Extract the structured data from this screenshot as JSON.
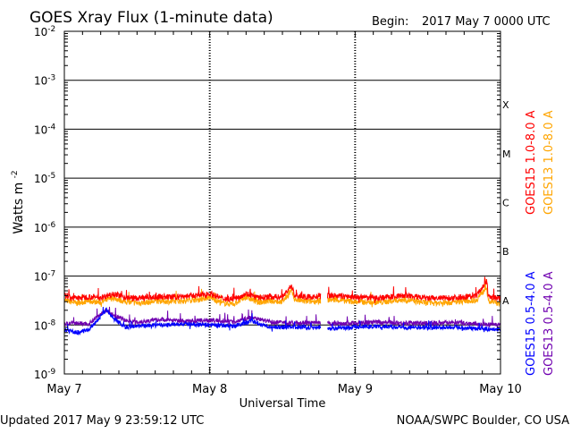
{
  "header": {
    "title": "GOES Xray Flux (1-minute data)",
    "begin_label": "Begin:",
    "begin_value": "2017 May 7 0000 UTC"
  },
  "footer": {
    "updated": "Updated 2017 May  9 23:59:12 UTC",
    "credit": "NOAA/SWPC Boulder, CO USA"
  },
  "colors": {
    "goes15_long": "#ff0000",
    "goes13_long": "#ffa500",
    "goes15_short": "#0000ff",
    "goes13_short": "#7000b0",
    "grid": "#000000",
    "background": "#ffffff"
  },
  "chart_data": {
    "type": "line",
    "title": "GOES Xray Flux (1-minute data)",
    "xlabel": "Universal Time",
    "ylabel": "Watts m-2",
    "y_scale": "log",
    "ylim": [
      1e-09,
      0.01
    ],
    "x_range_hours": [
      0,
      72
    ],
    "x_ticks": [
      {
        "label": "May 7",
        "hour": 0
      },
      {
        "label": "May 8",
        "hour": 24
      },
      {
        "label": "May 9",
        "hour": 48
      },
      {
        "label": "May 10",
        "hour": 72
      }
    ],
    "y_ticks": [
      {
        "base": "10",
        "exp": "-9",
        "value": 1e-09
      },
      {
        "base": "10",
        "exp": "-8",
        "value": 1e-08
      },
      {
        "base": "10",
        "exp": "-7",
        "value": 1e-07
      },
      {
        "base": "10",
        "exp": "-6",
        "value": 1e-06
      },
      {
        "base": "10",
        "exp": "-5",
        "value": 1e-05
      },
      {
        "base": "10",
        "exp": "-4",
        "value": 0.0001
      },
      {
        "base": "10",
        "exp": "-3",
        "value": 0.001
      },
      {
        "base": "10",
        "exp": "-2",
        "value": 0.01
      }
    ],
    "flare_classes": [
      {
        "label": "A",
        "value": 1e-08
      },
      {
        "label": "B",
        "value": 1e-07
      },
      {
        "label": "C",
        "value": 1e-06
      },
      {
        "label": "M",
        "value": 1e-05
      },
      {
        "label": "X",
        "value": 0.0001
      }
    ],
    "grid": true,
    "data_gap_hours": [
      42.3,
      43.4
    ],
    "series": [
      {
        "name": "GOES15 1.0-8.0 A",
        "color": "#ff0000",
        "points": [
          [
            0,
            4e-08
          ],
          [
            2,
            3.5e-08
          ],
          [
            4,
            3.8e-08
          ],
          [
            6,
            3.6e-08
          ],
          [
            8,
            4.4e-08
          ],
          [
            10,
            3.7e-08
          ],
          [
            12,
            3.5e-08
          ],
          [
            16,
            3.8e-08
          ],
          [
            18,
            3.7e-08
          ],
          [
            20,
            3.9e-08
          ],
          [
            22,
            4e-08
          ],
          [
            24,
            4.4e-08
          ],
          [
            26,
            3.5e-08
          ],
          [
            28,
            3.4e-08
          ],
          [
            30,
            4.4e-08
          ],
          [
            32,
            3.6e-08
          ],
          [
            34,
            3.8e-08
          ],
          [
            36,
            3.7e-08
          ],
          [
            37.5,
            6.5e-08
          ],
          [
            38,
            4e-08
          ],
          [
            40,
            3.7e-08
          ],
          [
            42,
            3.8e-08
          ],
          [
            44,
            4e-08
          ],
          [
            48,
            3.7e-08
          ],
          [
            52,
            3.6e-08
          ],
          [
            56,
            4e-08
          ],
          [
            60,
            3.5e-08
          ],
          [
            64,
            3.6e-08
          ],
          [
            66,
            3.8e-08
          ],
          [
            68,
            3.9e-08
          ],
          [
            69.7,
            8e-08
          ],
          [
            70,
            3.8e-08
          ],
          [
            72,
            3.5e-08
          ]
        ]
      },
      {
        "name": "GOES13 1.0-8.0 A",
        "color": "#ffa500",
        "points": [
          [
            0,
            3.2e-08
          ],
          [
            2,
            2.8e-08
          ],
          [
            4,
            3.1e-08
          ],
          [
            6,
            2.9e-08
          ],
          [
            8,
            3.6e-08
          ],
          [
            10,
            3e-08
          ],
          [
            12,
            2.8e-08
          ],
          [
            16,
            3.1e-08
          ],
          [
            18,
            3e-08
          ],
          [
            20,
            3.2e-08
          ],
          [
            22,
            3.3e-08
          ],
          [
            24,
            3.7e-08
          ],
          [
            26,
            2.8e-08
          ],
          [
            28,
            2.7e-08
          ],
          [
            30,
            3.7e-08
          ],
          [
            32,
            2.9e-08
          ],
          [
            34,
            3.1e-08
          ],
          [
            36,
            3e-08
          ],
          [
            37.5,
            5e-08
          ],
          [
            38,
            3.3e-08
          ],
          [
            40,
            3e-08
          ],
          [
            42,
            3.1e-08
          ],
          [
            44,
            3.3e-08
          ],
          [
            48,
            3e-08
          ],
          [
            52,
            2.9e-08
          ],
          [
            56,
            3.3e-08
          ],
          [
            60,
            2.8e-08
          ],
          [
            64,
            2.9e-08
          ],
          [
            66,
            3.1e-08
          ],
          [
            68,
            3.2e-08
          ],
          [
            69.7,
            6e-08
          ],
          [
            70,
            3e-08
          ],
          [
            72,
            2.8e-08
          ]
        ]
      },
      {
        "name": "GOES15 0.5-4.0 A",
        "color": "#0000ff",
        "points": [
          [
            0,
            8e-09
          ],
          [
            2,
            7e-09
          ],
          [
            4,
            8e-09
          ],
          [
            6,
            1.5e-08
          ],
          [
            7,
            2.1e-08
          ],
          [
            8,
            1.4e-08
          ],
          [
            10,
            9e-09
          ],
          [
            12,
            9.5e-09
          ],
          [
            16,
            1e-08
          ],
          [
            20,
            1.05e-08
          ],
          [
            24,
            1e-08
          ],
          [
            28,
            9.5e-09
          ],
          [
            31,
            1.2e-08
          ],
          [
            34,
            9e-09
          ],
          [
            38,
            9e-09
          ],
          [
            42,
            9e-09
          ],
          [
            44,
            8.5e-09
          ],
          [
            48,
            9e-09
          ],
          [
            52,
            9.5e-09
          ],
          [
            56,
            9e-09
          ],
          [
            60,
            8.8e-09
          ],
          [
            64,
            9.2e-09
          ],
          [
            68,
            8.5e-09
          ],
          [
            72,
            8e-09
          ]
        ]
      },
      {
        "name": "GOES13 0.5-4.0 A",
        "color": "#7000b0",
        "points": [
          [
            0,
            1.05e-08
          ],
          [
            2,
            1.1e-08
          ],
          [
            4,
            1.05e-08
          ],
          [
            6,
            1.7e-08
          ],
          [
            7,
            2e-08
          ],
          [
            8,
            1.6e-08
          ],
          [
            10,
            1.25e-08
          ],
          [
            12,
            1.15e-08
          ],
          [
            16,
            1.3e-08
          ],
          [
            20,
            1.2e-08
          ],
          [
            24,
            1.25e-08
          ],
          [
            28,
            1.15e-08
          ],
          [
            31,
            1.45e-08
          ],
          [
            34,
            1.15e-08
          ],
          [
            38,
            1.1e-08
          ],
          [
            42,
            1.1e-08
          ],
          [
            44,
            1.05e-08
          ],
          [
            48,
            1.1e-08
          ],
          [
            52,
            1.15e-08
          ],
          [
            56,
            1.1e-08
          ],
          [
            60,
            1.1e-08
          ],
          [
            64,
            1.15e-08
          ],
          [
            68,
            1.05e-08
          ],
          [
            72,
            1e-08
          ]
        ]
      }
    ]
  }
}
